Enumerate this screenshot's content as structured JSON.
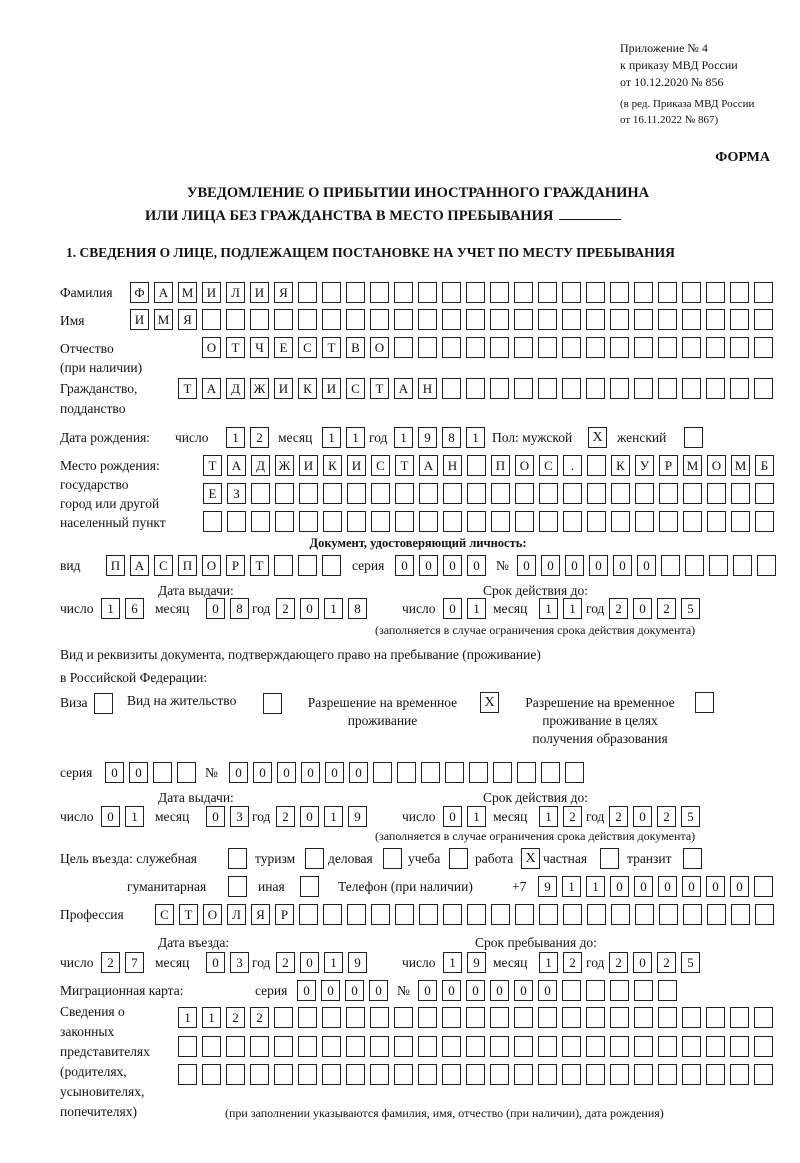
{
  "header": {
    "appendix": "Приложение № 4",
    "order": "к приказу МВД России",
    "order_date": "от 10.12.2020 № 856",
    "revision1": "(в ред. Приказа МВД России",
    "revision2": "от 16.11.2022 № 867)",
    "form": "ФОРМА",
    "title1": "УВЕДОМЛЕНИЕ О ПРИБЫТИИ ИНОСТРАННОГО ГРАЖДАНИНА",
    "title2": "ИЛИ ЛИЦА БЕЗ ГРАЖДАНСТВА В МЕСТО ПРЕБЫВАНИЯ",
    "section1": "1. СВЕДЕНИЯ О ЛИЦЕ, ПОДЛЕЖАЩЕМ ПОСТАНОВКЕ НА УЧЕТ ПО МЕСТУ ПРЕБЫВАНИЯ"
  },
  "labels": {
    "surname": "Фамилия",
    "name": "Имя",
    "patronymic1": "Отчество",
    "patronymic2": "(при наличии)",
    "citizenship1": "Гражданство,",
    "citizenship2": "подданство",
    "birth_date": "Дата рождения:",
    "day": "число",
    "month": "месяц",
    "year": "год",
    "sex": "Пол: мужской",
    "female": "женский",
    "birth_place1": "Место рождения:",
    "birth_place2": "государство",
    "birth_place3": "город или другой",
    "birth_place4": "населенный пункт",
    "id_doc": "Документ, удостоверяющий личность:",
    "kind": "вид",
    "series": "серия",
    "number": "№",
    "issue_date": "Дата выдачи:",
    "valid_until": "Срок действия до:",
    "valid_note": "(заполняется в случае ограничения срока действия документа)",
    "stay_doc1": "Вид и реквизиты документа, подтверждающего право на пребывание (проживание)",
    "stay_doc2": "в Российской Федерации:",
    "visa": "Виза",
    "residence": "Вид на жительство",
    "trp1": "Разрешение на временное",
    "trp2": "проживание",
    "trp_edu1": "Разрешение на временное",
    "trp_edu2": "проживание в целях",
    "trp_edu3": "получения образования",
    "purpose": "Цель въезда: служебная",
    "tourism": "туризм",
    "business": "деловая",
    "study": "учеба",
    "work": "работа",
    "private": "частная",
    "transit": "транзит",
    "humanitarian": "гуманитарная",
    "other": "иная",
    "phone": "Телефон (при наличии)",
    "phone_prefix": "+7",
    "profession": "Профессия",
    "entry_date": "Дата въезда:",
    "stay_until": "Срок пребывания до:",
    "migration_card": "Миграционная карта:",
    "reps1": "Сведения о",
    "reps2": "законных",
    "reps3": "представителях",
    "reps4": "(родителях,",
    "reps5": "усыновителях,",
    "reps6": "попечителях)",
    "reps_note": "(при заполнении указываются фамилия, имя, отчество (при наличии), дата рождения)"
  },
  "values": {
    "surname": "ФАМИЛИЯ",
    "name": "ИМЯ",
    "patronymic": "ОТЧЕСТВО",
    "citizenship": "ТАДЖИКИСТАН",
    "birth_day": "12",
    "birth_month": "11",
    "birth_year": "1981",
    "sex_male": "X",
    "sex_female": "",
    "birth_place1": "ТАДЖИКИСТАН ПОС. КУРМОМБ",
    "birth_place2": "ЕЗ",
    "birth_place3": "",
    "doc_kind": "ПАСПОРТ",
    "doc_series": "0000",
    "doc_number": "000000",
    "doc_issue_day": "16",
    "doc_issue_month": "08",
    "doc_issue_year": "2018",
    "doc_valid_day": "01",
    "doc_valid_month": "11",
    "doc_valid_year": "2025",
    "visa": "",
    "residence": "",
    "trp": "X",
    "trp_edu": "",
    "stay_series": "00",
    "stay_number": "000000",
    "stay_issue_day": "01",
    "stay_issue_month": "03",
    "stay_issue_year": "2019",
    "stay_valid_day": "01",
    "stay_valid_month": "12",
    "stay_valid_year": "2025",
    "purpose_official": "",
    "purpose_tourism": "",
    "purpose_business": "",
    "purpose_study": "",
    "purpose_work": "X",
    "purpose_private": "",
    "purpose_transit": "",
    "purpose_humanitarian": "",
    "purpose_other": "",
    "phone": "911000000",
    "profession": "СТОЛЯР",
    "entry_day": "27",
    "entry_month": "03",
    "entry_year": "2019",
    "stay_until_day": "19",
    "stay_until_month": "12",
    "stay_until_year": "2025",
    "mc_series": "0000",
    "mc_number": "000000",
    "reps1": "1122",
    "reps2": "",
    "reps3": ""
  }
}
